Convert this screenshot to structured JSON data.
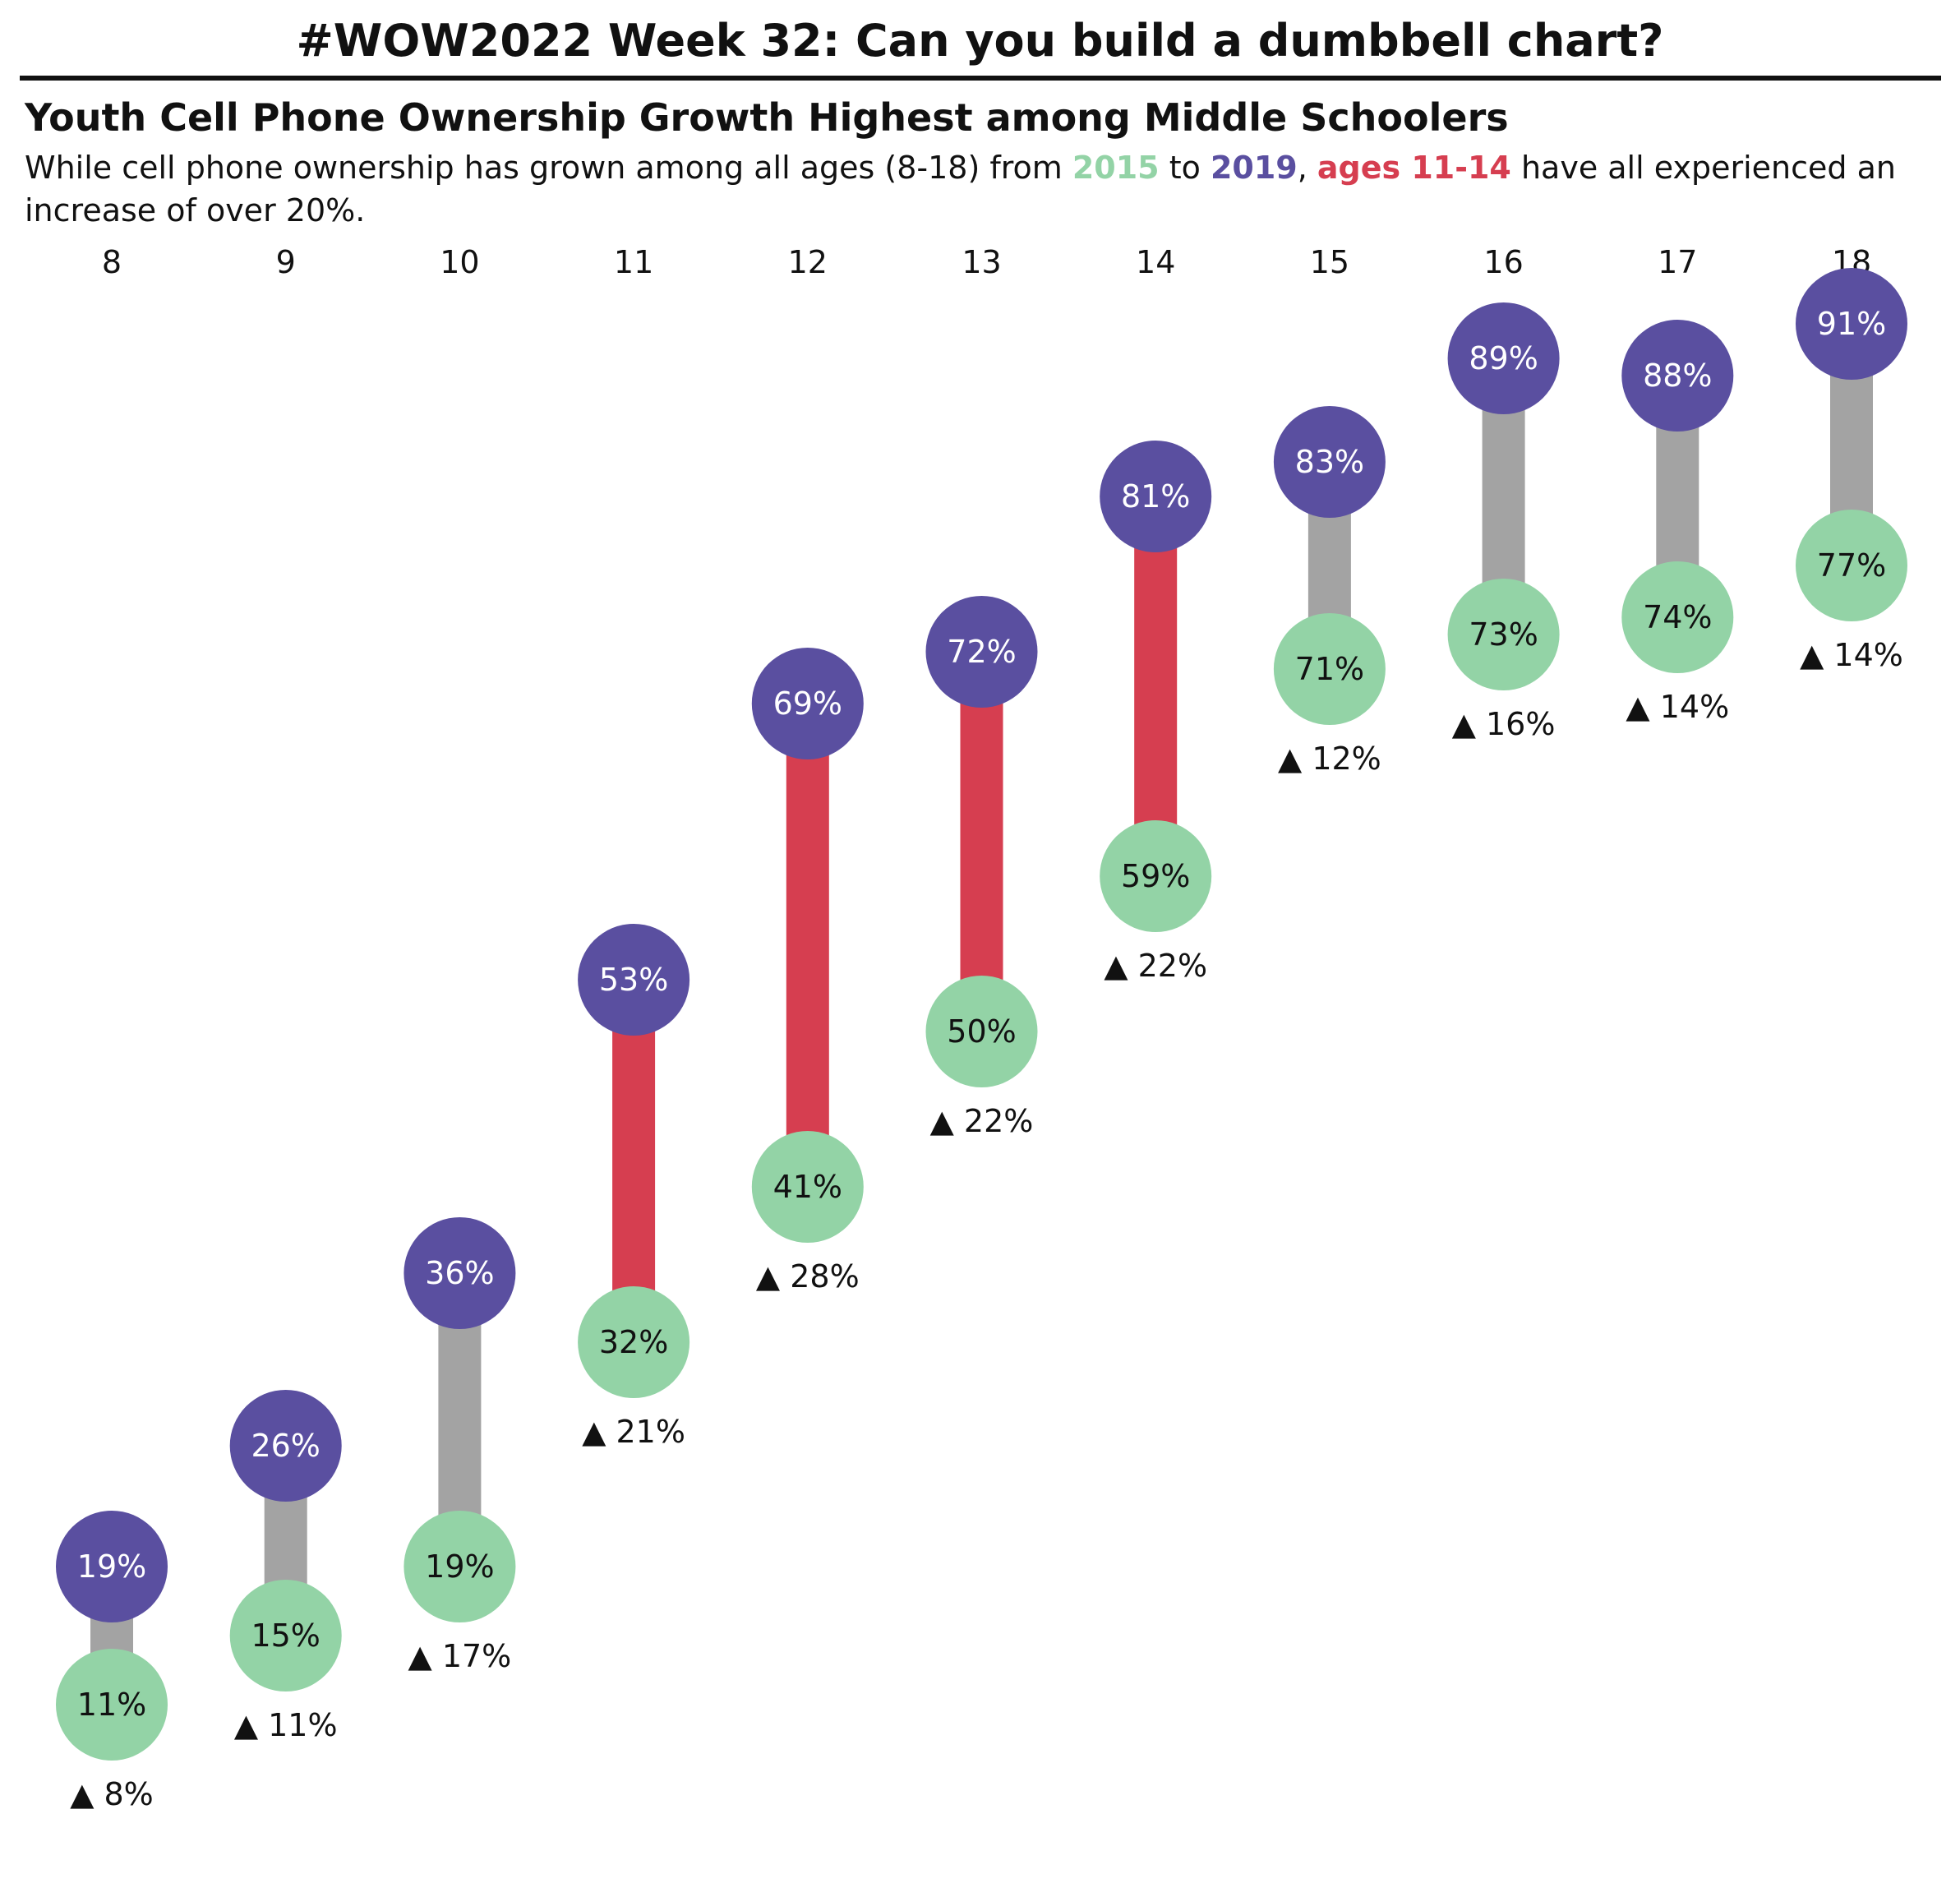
{
  "title": "#WOW2022 Week 32: Can you build a dumbbell chart?",
  "subtitle": "Youth Cell Phone Ownership Growth Highest among Middle Schoolers",
  "description": {
    "part1": "While cell phone ownership has grown among all ages (8-18) from ",
    "year_start": "2015",
    "part2": " to ",
    "year_end": "2019",
    "part3": ", ",
    "highlight": "ages 11-14",
    "part4": " have all experienced an increase of over 20%."
  },
  "colors": {
    "color_2015": "#93d3a6",
    "color_2019": "#5a4fa0",
    "highlight": "#d63e50",
    "connector": "#a3a3a3",
    "label_2019_text": "#ffffff",
    "label_2015_text": "#111111"
  },
  "chart_data": {
    "type": "dumbbell",
    "title": "Youth Cell Phone Ownership Growth Highest among Middle Schoolers",
    "xlabel": "",
    "ylabel": "",
    "categories": [
      "8",
      "9",
      "10",
      "11",
      "12",
      "13",
      "14",
      "15",
      "16",
      "17",
      "18"
    ],
    "series": [
      {
        "name": "2015",
        "values": [
          11,
          15,
          19,
          32,
          41,
          50,
          59,
          71,
          73,
          74,
          77
        ]
      },
      {
        "name": "2019",
        "values": [
          19,
          26,
          36,
          53,
          69,
          72,
          81,
          83,
          89,
          88,
          91
        ]
      }
    ],
    "change_labels": [
      "▲ 8%",
      "▲ 11%",
      "▲ 17%",
      "▲ 21%",
      "▲ 28%",
      "▲ 22%",
      "▲ 22%",
      "▲ 12%",
      "▲ 16%",
      "▲ 14%",
      "▲ 14%"
    ],
    "highlighted_categories": [
      "11",
      "12",
      "13",
      "14"
    ],
    "value_suffix": "%",
    "ylim": [
      0,
      100
    ],
    "grid": false,
    "legend": "none"
  }
}
